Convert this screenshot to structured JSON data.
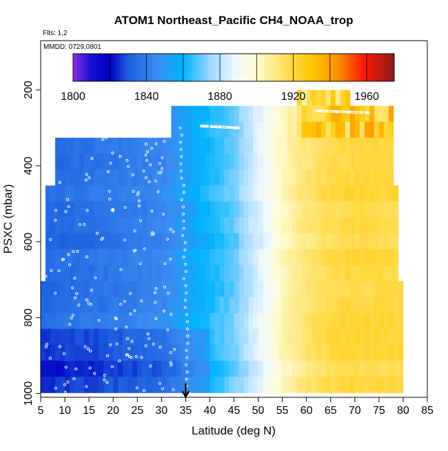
{
  "title": "ATOM1 Northeast_Pacific CH4_NOAA_trop",
  "flights_label": "Flts: 1,2",
  "mmdd_label": "MMDD: 0729,0801",
  "colors": {
    "text": "#000000",
    "marker": "#ffffff",
    "arrow": "#000000"
  },
  "chart_data": {
    "type": "heatmap",
    "title": "ATOM1 Northeast_Pacific CH4_NOAA_trop",
    "xlabel": "Latitude (deg N)",
    "ylabel": "PSXC (mbar)",
    "xlim": [
      5,
      85
    ],
    "ylim": [
      1010,
      70
    ],
    "x_ticks": [
      5,
      10,
      15,
      20,
      25,
      30,
      35,
      40,
      45,
      50,
      55,
      60,
      65,
      70,
      75,
      80,
      85
    ],
    "y_ticks": [
      200,
      400,
      600,
      800,
      1000
    ],
    "colorbar": {
      "range": [
        1800,
        1975
      ],
      "step": 20,
      "ticks": [
        1800,
        1840,
        1880,
        1920,
        1960
      ],
      "stops": [
        {
          "v": 1800,
          "c": "#8a2be2"
        },
        {
          "v": 1810,
          "c": "#1a0fd6"
        },
        {
          "v": 1820,
          "c": "#0000c0"
        },
        {
          "v": 1830,
          "c": "#1e5fe0"
        },
        {
          "v": 1845,
          "c": "#3a8cf0"
        },
        {
          "v": 1860,
          "c": "#00b4ff"
        },
        {
          "v": 1875,
          "c": "#9cd8ff"
        },
        {
          "v": 1888,
          "c": "#eef8ff"
        },
        {
          "v": 1900,
          "c": "#fffbd0"
        },
        {
          "v": 1915,
          "c": "#ffe060"
        },
        {
          "v": 1930,
          "c": "#ffc800"
        },
        {
          "v": 1945,
          "c": "#ff8c00"
        },
        {
          "v": 1958,
          "c": "#ff1a00"
        },
        {
          "v": 1975,
          "c": "#8b1a1a"
        }
      ]
    },
    "value_model": {
      "lat_anchors": [
        {
          "lat": 5,
          "v": 1833
        },
        {
          "lat": 20,
          "v": 1838
        },
        {
          "lat": 30,
          "v": 1843
        },
        {
          "lat": 38,
          "v": 1858
        },
        {
          "lat": 45,
          "v": 1870
        },
        {
          "lat": 50,
          "v": 1885
        },
        {
          "lat": 55,
          "v": 1902
        },
        {
          "lat": 60,
          "v": 1912
        },
        {
          "lat": 65,
          "v": 1918
        },
        {
          "lat": 70,
          "v": 1920
        },
        {
          "lat": 79,
          "v": 1919
        }
      ],
      "low_level_depression_mbar": 820,
      "low_level_depression_value": 10
    },
    "coverage": [
      {
        "p_top": 315,
        "p_bottom": 470,
        "lat_min": 8,
        "lat_max": 78
      },
      {
        "p_top": 470,
        "p_bottom": 720,
        "lat_min": 6,
        "lat_max": 79
      },
      {
        "p_top": 720,
        "p_bottom": 1010,
        "lat_min": 5,
        "lat_max": 80
      },
      {
        "p_top": 260,
        "p_bottom": 315,
        "lat_min": 32,
        "lat_max": 78
      },
      {
        "p_top": 200,
        "p_bottom": 260,
        "lat_min": 58,
        "lat_max": 69
      }
    ],
    "marker_tracks": [
      {
        "name": "descent-track",
        "lat": [
          34,
          35.5
        ],
        "p": [
          300,
          1000
        ]
      },
      {
        "name": "upper-leg-left",
        "lat": [
          38,
          46
        ],
        "p": [
          295,
          300
        ]
      },
      {
        "name": "upper-leg-right",
        "lat": [
          62,
          73
        ],
        "p": [
          255,
          260
        ]
      }
    ],
    "scatter_marker_count": 170,
    "arrow_latitude": 35
  }
}
